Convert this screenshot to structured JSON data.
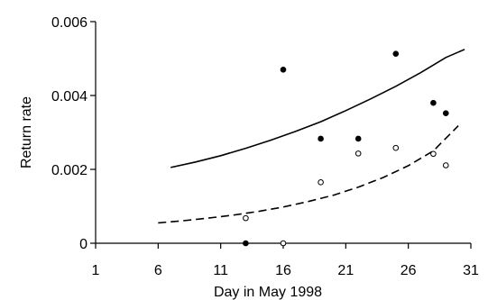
{
  "chart_data": {
    "type": "scatter",
    "title": "",
    "xlabel": "Day in May 1998",
    "ylabel": "Return rate",
    "xlim": [
      1,
      31
    ],
    "ylim": [
      0,
      0.006
    ],
    "x_ticks": [
      1,
      6,
      11,
      16,
      21,
      26,
      31
    ],
    "y_ticks": [
      0,
      0.002,
      0.004,
      0.006
    ],
    "x_tick_labels": [
      "1",
      "6",
      "11",
      "16",
      "21",
      "26",
      "31"
    ],
    "y_tick_labels": [
      "0",
      "0.002",
      "0.004",
      "0.006"
    ],
    "grid": false,
    "legend": "none",
    "series": [
      {
        "style": "filled-points",
        "color": "#000000",
        "x": [
          13,
          16,
          19,
          22,
          25,
          28,
          29
        ],
        "y": [
          0.0,
          0.0047,
          0.00283,
          0.00283,
          0.00513,
          0.0038,
          0.00352
        ]
      },
      {
        "style": "open-points",
        "color": "#000000",
        "x": [
          13,
          16,
          19,
          22,
          25,
          28,
          29
        ],
        "y": [
          0.00068,
          0.0,
          0.00165,
          0.00243,
          0.00258,
          0.00242,
          0.00211
        ]
      },
      {
        "style": "solid-line",
        "color": "#000000",
        "x": [
          7,
          9,
          11,
          13,
          15,
          17,
          19,
          21,
          23,
          25,
          27,
          29,
          30.5
        ],
        "y": [
          0.00205,
          0.0022,
          0.00237,
          0.00257,
          0.00279,
          0.00303,
          0.00329,
          0.00359,
          0.00391,
          0.00425,
          0.00462,
          0.00503,
          0.00525
        ]
      },
      {
        "style": "dashed-line",
        "color": "#000000",
        "x": [
          6,
          8,
          10,
          12,
          14,
          16,
          18,
          20,
          22,
          24,
          26,
          28,
          30
        ],
        "y": [
          0.00055,
          0.00061,
          0.00068,
          0.00076,
          0.00086,
          0.00098,
          0.00113,
          0.0013,
          0.00152,
          0.00178,
          0.0021,
          0.0025,
          0.00318
        ]
      }
    ]
  }
}
